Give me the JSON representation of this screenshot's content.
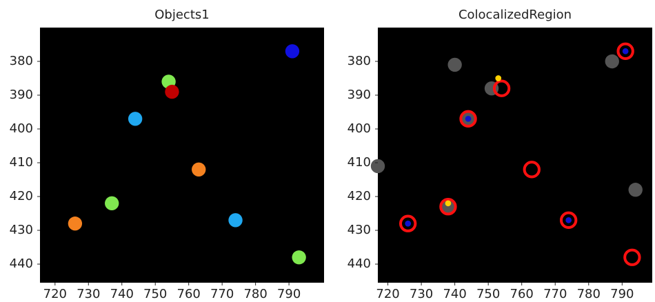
{
  "chart_data": [
    {
      "type": "scatter",
      "title": "Objects1",
      "xlim": [
        715.5,
        800.5
      ],
      "ylim": [
        445.5,
        370
      ],
      "background": "#000000",
      "xticks": [
        720,
        730,
        740,
        750,
        760,
        770,
        780,
        790
      ],
      "yticks": [
        380,
        390,
        400,
        410,
        420,
        430,
        440
      ],
      "series": [
        {
          "color": "#1010e0",
          "marker": "blob",
          "x": [
            791
          ],
          "values": [
            377
          ]
        },
        {
          "color": "#80e850",
          "marker": "blob",
          "x": [
            754,
            737,
            793
          ],
          "values": [
            386,
            422,
            438
          ]
        },
        {
          "color": "#c00000",
          "marker": "blob",
          "x": [
            755
          ],
          "values": [
            389
          ]
        },
        {
          "color": "#20a8f0",
          "marker": "blob",
          "x": [
            744,
            774
          ],
          "values": [
            397,
            427
          ]
        },
        {
          "color": "#f58220",
          "marker": "blob",
          "x": [
            763,
            726
          ],
          "values": [
            412,
            428
          ]
        }
      ]
    },
    {
      "type": "scatter",
      "title": "ColocalizedRegion",
      "xlim": [
        717,
        799
      ],
      "ylim": [
        445.5,
        370
      ],
      "background": "#000000",
      "xticks": [
        720,
        730,
        740,
        750,
        760,
        770,
        780,
        790
      ],
      "yticks": [
        380,
        390,
        400,
        410,
        420,
        430,
        440
      ],
      "series": [
        {
          "color": "#555555",
          "marker": "blob",
          "x": [
            787,
            740,
            751,
            744,
            738,
            794,
            717
          ],
          "values": [
            380,
            381,
            388,
            397,
            423,
            418,
            411
          ]
        },
        {
          "color": "#ff1010",
          "marker": "ring",
          "x": [
            791,
            744,
            763,
            738,
            726,
            774,
            793,
            754
          ],
          "values": [
            377,
            397,
            412,
            423,
            428,
            427,
            438,
            388
          ]
        },
        {
          "color": "#1010d0",
          "marker": "dot",
          "x": [
            791,
            744,
            726,
            774
          ],
          "values": [
            377,
            397,
            428,
            427
          ]
        },
        {
          "color": "#ffd000",
          "marker": "dot",
          "x": [
            753,
            738
          ],
          "values": [
            385,
            422
          ]
        }
      ]
    }
  ]
}
